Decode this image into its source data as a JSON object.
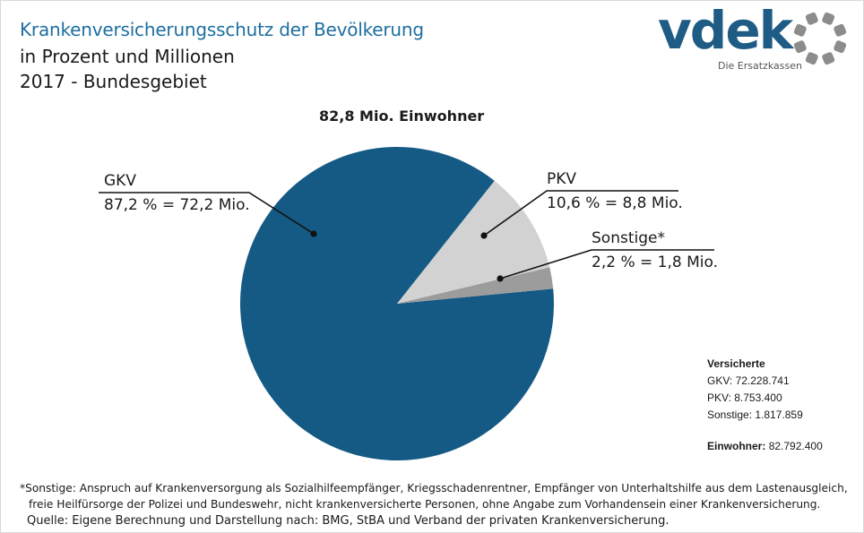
{
  "header": {
    "title": "Krankenversicherungsschutz der Bevölkerung",
    "subtitle_line1": "in Prozent und Millionen",
    "subtitle_line2": "2017 - Bundesgebiet"
  },
  "logo": {
    "wordmark": "vdek",
    "tagline": "Die Ersatzkassen",
    "color": "#1e5b85",
    "ring_color": "#8c8c8c"
  },
  "chart_data": {
    "type": "pie",
    "title": "82,8 Mio. Einwohner",
    "slices": [
      {
        "name": "GKV",
        "percent": 87.2,
        "millions": 72.2,
        "label": "87,2 % = 72,2 Mio.",
        "color": "#155a84"
      },
      {
        "name": "PKV",
        "percent": 10.6,
        "millions": 8.8,
        "label": "10,6 % = 8,8 Mio.",
        "color": "#d2d2d2"
      },
      {
        "name": "Sonstige*",
        "percent": 2.2,
        "millions": 1.8,
        "label": "2,2 % = 1,8 Mio.",
        "color": "#9c9c9c"
      }
    ]
  },
  "insured_box": {
    "heading": "Versicherte",
    "lines": [
      "GKV: 72.228.741",
      "PKV: 8.753.400",
      "Sonstige: 1.817.859"
    ],
    "population_label": "Einwohner:",
    "population_value": "82.792.400"
  },
  "footnote": {
    "line1": "*Sonstige: Anspruch auf Krankenversorgung als Sozialhilfeempfänger, Kriegsschadenrentner, Empfänger von Unterhaltshilfe aus dem Lastenausgleich,",
    "line2": "freie Heilfürsorge der Polizei und Bundeswehr, nicht krankenversicherte Personen, ohne Angabe zum Vorhandensein einer Krankenversicherung."
  },
  "source": "Quelle: Eigene Berechnung und Darstellung nach: BMG, StBA und Verband der privaten Krankenversicherung."
}
